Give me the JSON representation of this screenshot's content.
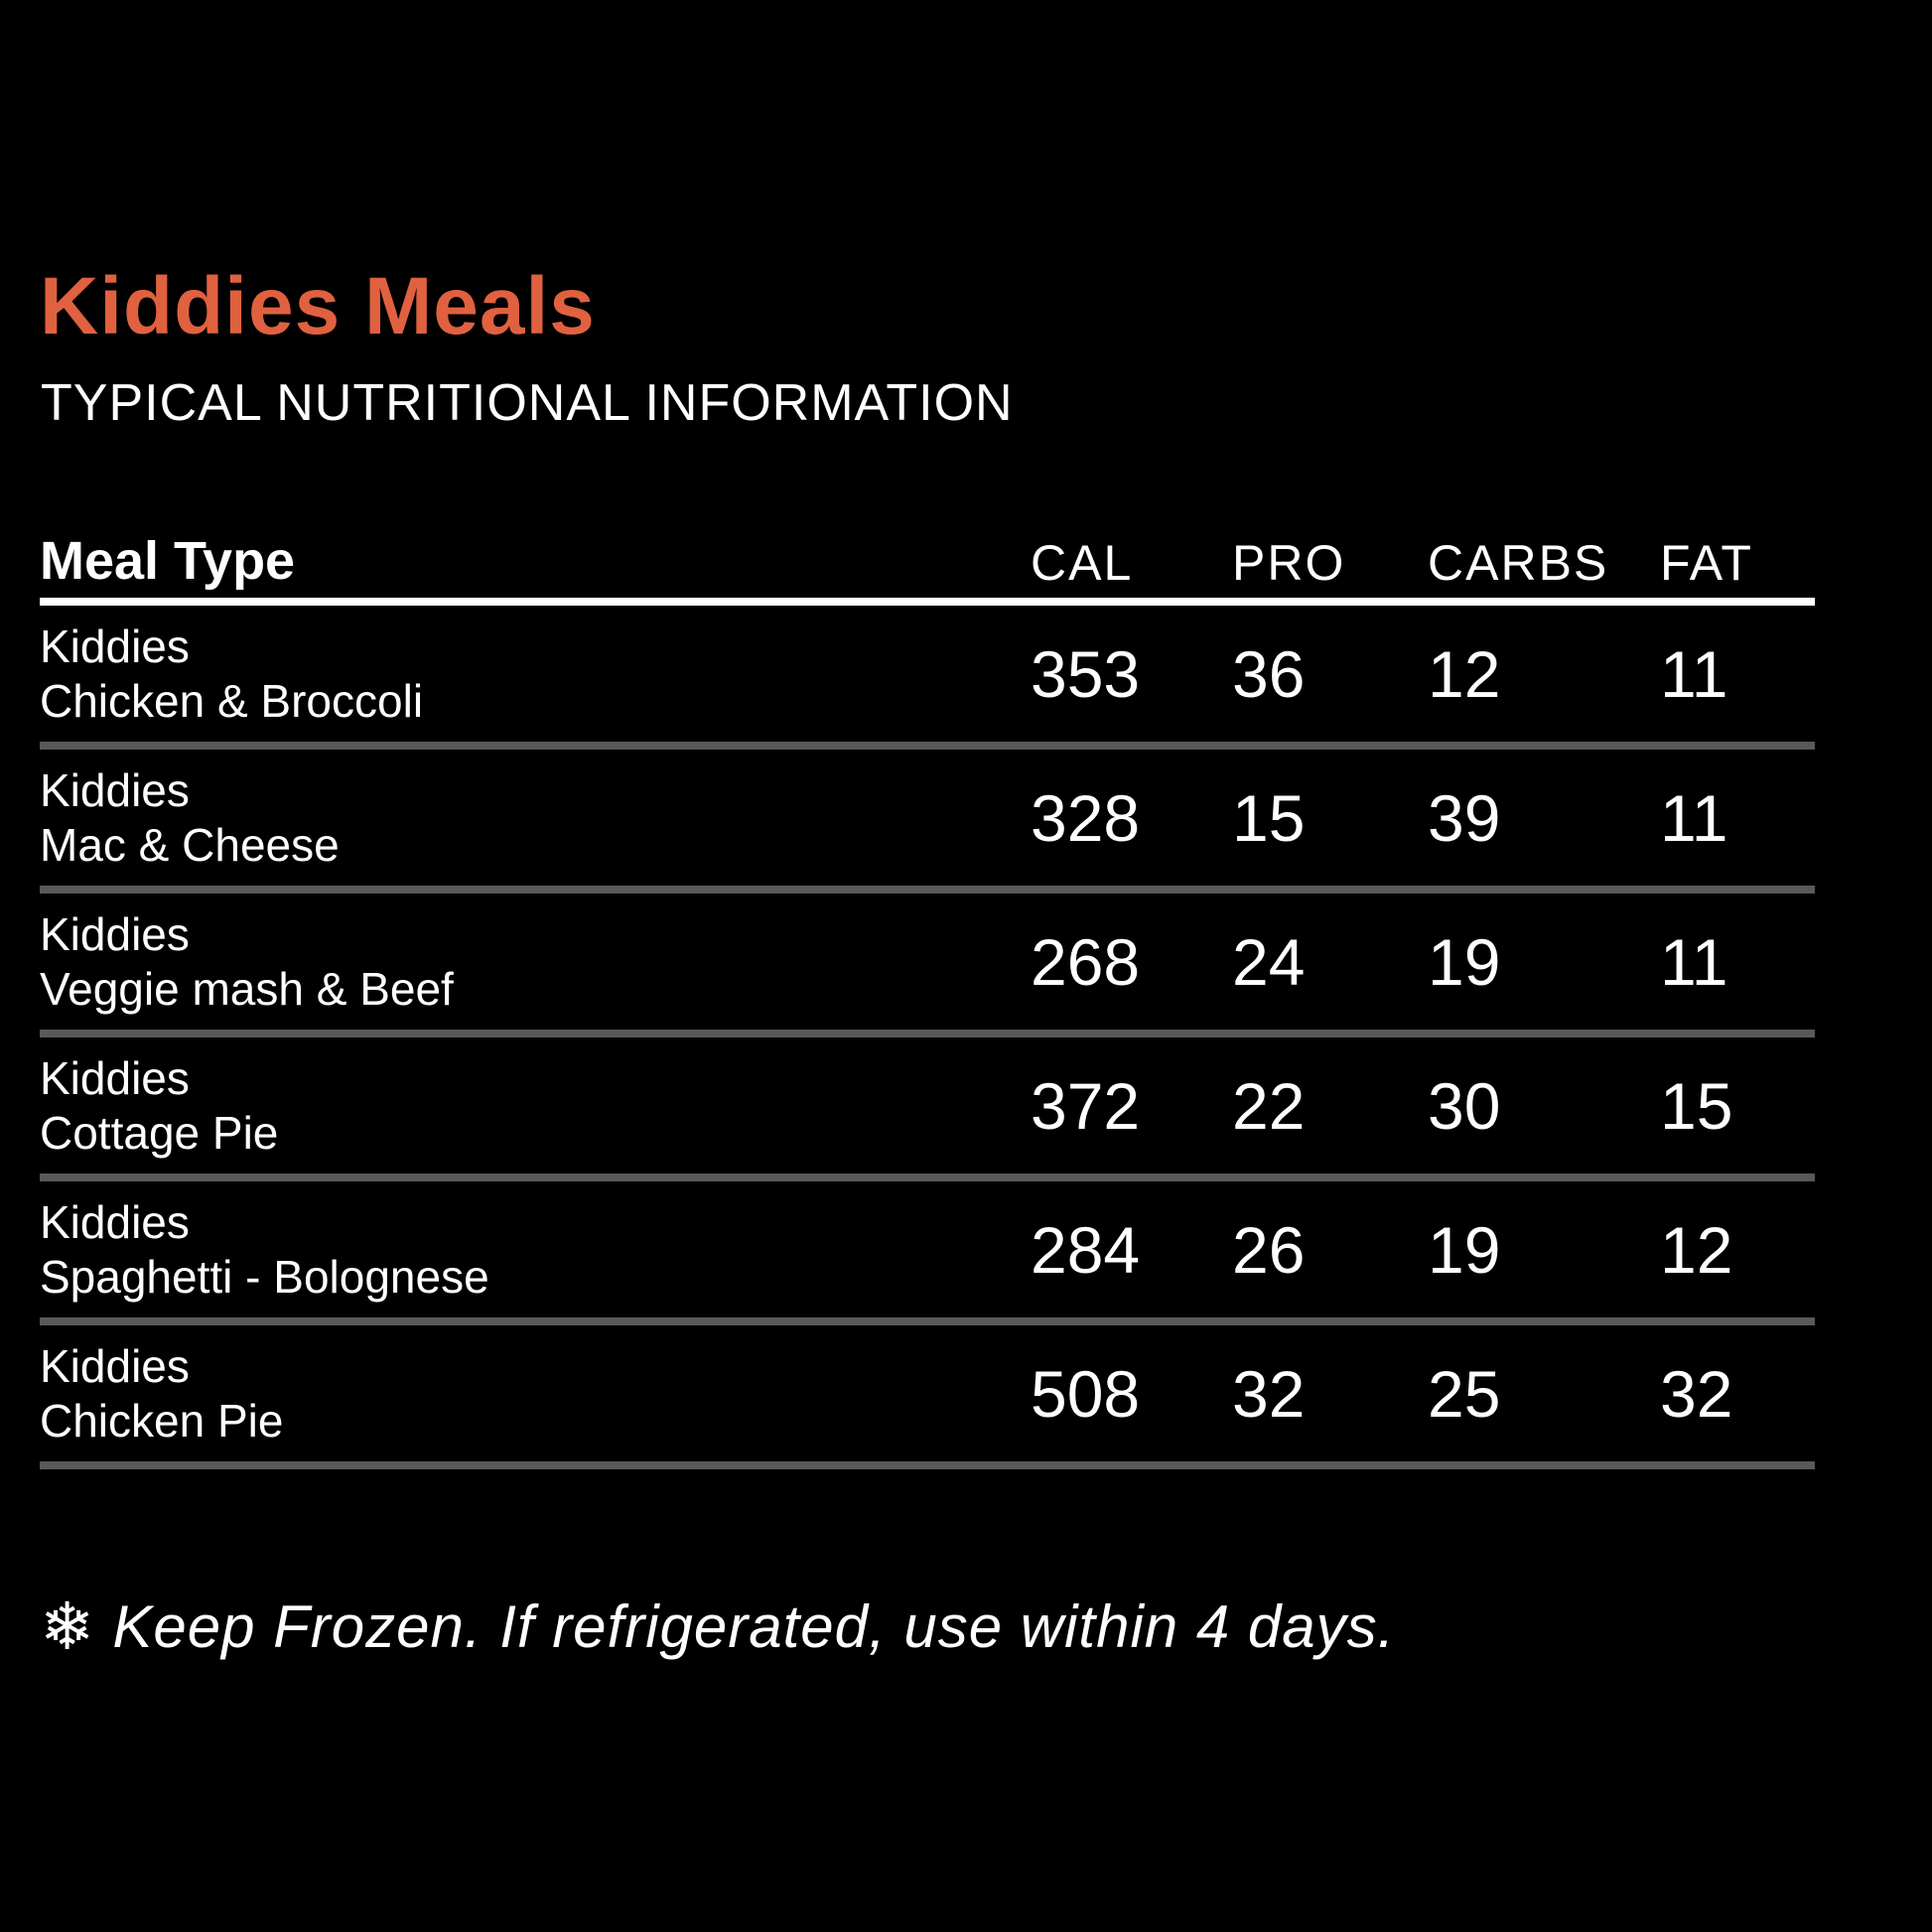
{
  "header": {
    "title": "Kiddies Meals",
    "subtitle": "TYPICAL NUTRITIONAL INFORMATION"
  },
  "table": {
    "columns": {
      "meal": "Meal Type",
      "cal": "CAL",
      "pro": "PRO",
      "carbs": "CARBS",
      "fat": "FAT"
    },
    "rows": [
      {
        "line1": "Kiddies",
        "line2": "Chicken & Broccoli",
        "cal": "353",
        "pro": "36",
        "carbs": "12",
        "fat": "11"
      },
      {
        "line1": "Kiddies",
        "line2": "Mac & Cheese",
        "cal": "328",
        "pro": "15",
        "carbs": "39",
        "fat": "11"
      },
      {
        "line1": "Kiddies",
        "line2": "Veggie mash & Beef",
        "cal": "268",
        "pro": "24",
        "carbs": "19",
        "fat": "11"
      },
      {
        "line1": "Kiddies",
        "line2": "Cottage Pie",
        "cal": "372",
        "pro": "22",
        "carbs": "30",
        "fat": "15"
      },
      {
        "line1": "Kiddies",
        "line2": "Spaghetti - Bolognese",
        "cal": "284",
        "pro": "26",
        "carbs": "19",
        "fat": "12"
      },
      {
        "line1": "Kiddies",
        "line2": "Chicken Pie",
        "cal": "508",
        "pro": "32",
        "carbs": "25",
        "fat": "32"
      }
    ]
  },
  "footer": {
    "snowflake_icon": "❄",
    "note": "Keep Frozen. If refrigerated, use within 4 days."
  },
  "colors": {
    "background": "#000000",
    "accent_title": "#E0613F",
    "text": "#FFFFFF",
    "header_line": "#FFFFFF",
    "row_divider": "#595959"
  },
  "chart_data": {
    "type": "table",
    "title": "Kiddies Meals — TYPICAL NUTRITIONAL INFORMATION",
    "columns": [
      "Meal Type",
      "CAL",
      "PRO",
      "CARBS",
      "FAT"
    ],
    "rows": [
      [
        "Kiddies Chicken & Broccoli",
        353,
        36,
        12,
        11
      ],
      [
        "Kiddies Mac & Cheese",
        328,
        15,
        39,
        11
      ],
      [
        "Kiddies Veggie mash & Beef",
        268,
        24,
        19,
        11
      ],
      [
        "Kiddies Cottage Pie",
        372,
        22,
        30,
        15
      ],
      [
        "Kiddies Spaghetti - Bolognese",
        284,
        26,
        19,
        12
      ],
      [
        "Kiddies Chicken Pie",
        508,
        32,
        25,
        32
      ]
    ],
    "note": "Keep Frozen. If refrigerated, use within 4 days."
  }
}
